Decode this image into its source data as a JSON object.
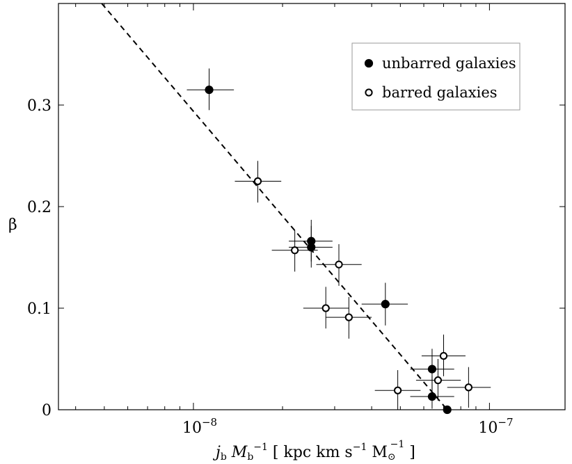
{
  "chart_data": {
    "type": "scatter",
    "title": "",
    "xscale": "log",
    "xlim": [
      3.5e-09,
      1.8e-07
    ],
    "ylim": [
      0,
      0.4
    ],
    "xlabel": {
      "j": "j",
      "j_sub": "b",
      "M": " M",
      "M_sub": "b",
      "M_sup": "−1",
      "bracket_open": " [ kpc  km s",
      "s_sup": "−1",
      "Msun": " M",
      "Msun_sub": "⊙",
      "Msun_sup": "−1",
      "bracket_close": " ]"
    },
    "ylabel": "β",
    "y_ticks": [
      {
        "value": 0,
        "label": "0"
      },
      {
        "value": 0.1,
        "label": "0.1"
      },
      {
        "value": 0.2,
        "label": "0.2"
      },
      {
        "value": 0.3,
        "label": "0.3"
      }
    ],
    "x_ticks": [
      {
        "value": 1e-08,
        "base": "10",
        "exp": "−8"
      },
      {
        "value": 1e-07,
        "base": "10",
        "exp": "−7"
      }
    ],
    "fit_line": {
      "x": [
        4.9e-09,
        7.2e-08
      ],
      "y": [
        0.4,
        0.0
      ]
    },
    "legend": {
      "position": "top-right",
      "entries": [
        {
          "label": "unbarred galaxies",
          "marker": "filled"
        },
        {
          "label": "barred galaxies",
          "marker": "open"
        }
      ]
    },
    "series": [
      {
        "name": "unbarred galaxies",
        "marker": "filled",
        "points": [
          {
            "x": 1.13e-08,
            "y": 0.315,
            "xlo": 9.5e-09,
            "xhi": 1.37e-08,
            "ylo": 0.295,
            "yhi": 0.336
          },
          {
            "x": 2.5e-08,
            "y": 0.166,
            "xlo": 2.1e-08,
            "xhi": 2.95e-08,
            "ylo": 0.146,
            "yhi": 0.187
          },
          {
            "x": 2.5e-08,
            "y": 0.16,
            "xlo": 2.1e-08,
            "xhi": 2.95e-08,
            "ylo": 0.14,
            "yhi": 0.181
          },
          {
            "x": 4.45e-08,
            "y": 0.104,
            "xlo": 3.7e-08,
            "xhi": 5.3e-08,
            "ylo": 0.083,
            "yhi": 0.125
          },
          {
            "x": 6.4e-08,
            "y": 0.04,
            "xlo": 5.4e-08,
            "xhi": 7.6e-08,
            "ylo": 0.019,
            "yhi": 0.06
          },
          {
            "x": 6.4e-08,
            "y": 0.013,
            "xlo": 5.4e-08,
            "xhi": 7.6e-08,
            "ylo": 0.001,
            "yhi": 0.033
          },
          {
            "x": 7.2e-08,
            "y": 0.0,
            "xlo": 7.2e-08,
            "xhi": 7.2e-08,
            "ylo": 0.0,
            "yhi": 0.0
          }
        ]
      },
      {
        "name": "barred galaxies",
        "marker": "open",
        "points": [
          {
            "x": 1.65e-08,
            "y": 0.225,
            "xlo": 1.38e-08,
            "xhi": 1.98e-08,
            "ylo": 0.204,
            "yhi": 0.245
          },
          {
            "x": 2.2e-08,
            "y": 0.157,
            "xlo": 1.84e-08,
            "xhi": 2.63e-08,
            "ylo": 0.136,
            "yhi": 0.177
          },
          {
            "x": 3.1e-08,
            "y": 0.143,
            "xlo": 2.6e-08,
            "xhi": 3.7e-08,
            "ylo": 0.122,
            "yhi": 0.163
          },
          {
            "x": 2.8e-08,
            "y": 0.1,
            "xlo": 2.35e-08,
            "xhi": 3.35e-08,
            "ylo": 0.08,
            "yhi": 0.121
          },
          {
            "x": 3.35e-08,
            "y": 0.091,
            "xlo": 2.8e-08,
            "xhi": 4e-08,
            "ylo": 0.07,
            "yhi": 0.111
          },
          {
            "x": 7e-08,
            "y": 0.053,
            "xlo": 5.9e-08,
            "xhi": 8.3e-08,
            "ylo": 0.033,
            "yhi": 0.074
          },
          {
            "x": 6.7e-08,
            "y": 0.029,
            "xlo": 5.65e-08,
            "xhi": 8e-08,
            "ylo": 0.009,
            "yhi": 0.05
          },
          {
            "x": 8.5e-08,
            "y": 0.022,
            "xlo": 7.2e-08,
            "xhi": 1.01e-07,
            "ylo": 0.002,
            "yhi": 0.042
          },
          {
            "x": 4.9e-08,
            "y": 0.019,
            "xlo": 4.1e-08,
            "xhi": 5.85e-08,
            "ylo": 0.0,
            "yhi": 0.039
          }
        ]
      }
    ]
  }
}
